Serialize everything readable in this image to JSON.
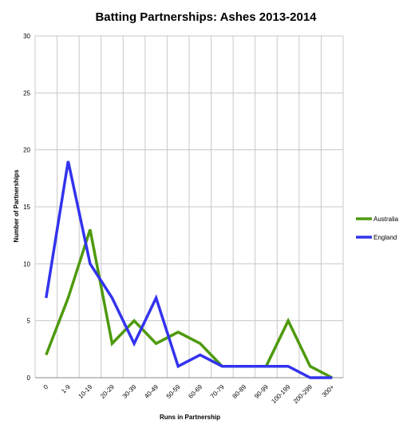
{
  "chart_data": {
    "type": "line",
    "title": "Batting Partnerships: Ashes 2013-2014",
    "xlabel": "Runs in Partnership",
    "ylabel": "Number of Partnerships",
    "categories": [
      "0",
      "1-9",
      "10-19",
      "20-29",
      "30-39",
      "40-49",
      "50-59",
      "60-69",
      "70-79",
      "80-89",
      "90-99",
      "100-199",
      "200-299",
      "300+"
    ],
    "ylim": [
      0,
      30
    ],
    "yticks": [
      "0",
      "5",
      "10",
      "15",
      "20",
      "25",
      "30"
    ],
    "grid": "vertical-and-horizontal",
    "legend_position": "right",
    "series": [
      {
        "name": "Australia",
        "color": "#4e9a0e",
        "values": [
          2,
          7,
          13,
          3,
          5,
          3,
          4,
          3,
          1,
          1,
          1,
          5,
          1,
          0
        ]
      },
      {
        "name": "England",
        "color": "#3333ee",
        "values": [
          7,
          19,
          10,
          7,
          3,
          7,
          1,
          2,
          1,
          1,
          1,
          1,
          0,
          0
        ]
      }
    ]
  }
}
